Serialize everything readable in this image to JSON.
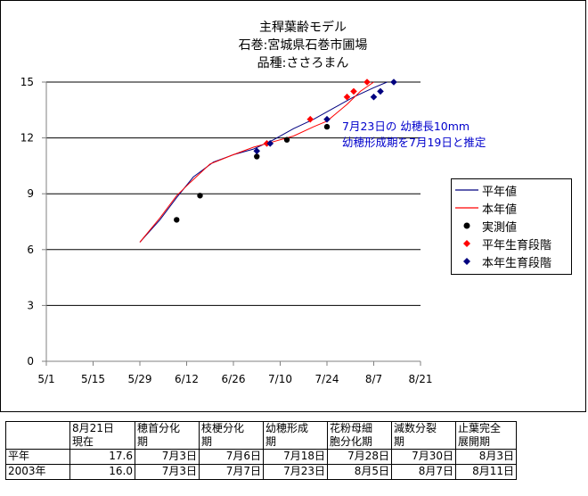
{
  "chart_data": {
    "type": "line",
    "title": "主稈葉齢モデル\n石巻:宮城県石巻市圃場\n品種:ささろまん",
    "title_lines": [
      "主稈葉齢モデル",
      "石巻:宮城県石巻市圃場",
      "品種:ささろまん"
    ],
    "xlabel": "",
    "ylabel": "",
    "x_ticks": [
      "5/1",
      "5/15",
      "5/29",
      "6/12",
      "6/26",
      "7/10",
      "7/24",
      "8/7",
      "8/21"
    ],
    "x_tick_days": [
      0,
      14,
      28,
      42,
      56,
      70,
      84,
      98,
      112
    ],
    "x_range_days": [
      0,
      112
    ],
    "y_ticks": [
      "0",
      "3",
      "6",
      "9",
      "12",
      "15"
    ],
    "ylim": [
      0,
      15
    ],
    "grid": "horizontal",
    "legend_position": "right",
    "series": [
      {
        "name": "平年値",
        "kind": "line",
        "color": "#000080",
        "points": [
          [
            28,
            6.4
          ],
          [
            34,
            7.6
          ],
          [
            39,
            8.8
          ],
          [
            44,
            9.9
          ],
          [
            50,
            10.7
          ],
          [
            56,
            11.1
          ],
          [
            62,
            11.4
          ],
          [
            68,
            11.9
          ],
          [
            74,
            12.5
          ],
          [
            80,
            13.0
          ],
          [
            86,
            13.6
          ],
          [
            92,
            14.2
          ],
          [
            98,
            14.7
          ],
          [
            102,
            15.0
          ]
        ]
      },
      {
        "name": "本年値",
        "kind": "line",
        "color": "#ff0000",
        "points": [
          [
            28,
            6.4
          ],
          [
            34,
            7.7
          ],
          [
            39,
            8.9
          ],
          [
            43,
            9.6
          ],
          [
            49,
            10.6
          ],
          [
            56,
            11.1
          ],
          [
            62,
            11.5
          ],
          [
            68,
            11.8
          ],
          [
            74,
            12.1
          ],
          [
            80,
            12.6
          ],
          [
            84,
            12.9
          ],
          [
            90,
            13.8
          ],
          [
            94,
            14.5
          ],
          [
            98,
            15.0
          ]
        ]
      },
      {
        "name": "実測値",
        "kind": "marker",
        "marker": "circle",
        "color": "#000000",
        "points": [
          [
            39,
            7.6
          ],
          [
            46,
            8.9
          ],
          [
            63,
            11.0
          ],
          [
            72,
            11.9
          ],
          [
            84,
            12.6
          ]
        ]
      },
      {
        "name": "平年生育段階",
        "kind": "marker",
        "marker": "diamond",
        "color": "#ff0000",
        "points": [
          [
            66,
            11.7
          ],
          [
            79,
            13.0
          ],
          [
            90,
            14.2
          ],
          [
            92,
            14.5
          ],
          [
            96,
            15.0
          ]
        ]
      },
      {
        "name": "本年生育段階",
        "kind": "marker",
        "marker": "diamond",
        "color": "#000080",
        "points": [
          [
            63,
            11.3
          ],
          [
            67,
            11.7
          ],
          [
            84,
            13.0
          ],
          [
            98,
            14.2
          ],
          [
            100,
            14.5
          ],
          [
            104,
            15.0
          ]
        ]
      }
    ],
    "annotations": [
      "7月23日の 幼穂長10mm",
      "幼穂形成期を7月19日と推定"
    ],
    "annotation_color": "#0000cc",
    "axis_color": "#808080",
    "grid_color": "#000000"
  },
  "table": {
    "headers": [
      [
        "",
        ""
      ],
      [
        "8月21日",
        "現在"
      ],
      [
        "穂首分化",
        "期"
      ],
      [
        "枝梗分化",
        "期"
      ],
      [
        "幼穂形成",
        "期"
      ],
      [
        "花粉母細",
        "胞分化期"
      ],
      [
        "減数分裂",
        "期"
      ],
      [
        "止葉完全",
        "展開期"
      ]
    ],
    "rows": [
      [
        "平年",
        "17.6",
        "7月3日",
        "7月6日",
        "7月18日",
        "7月28日",
        "7月30日",
        "8月3日"
      ],
      [
        "2003年",
        "16.0",
        "7月3日",
        "7月7日",
        "7月23日",
        "8月5日",
        "8月7日",
        "8月11日"
      ]
    ]
  }
}
